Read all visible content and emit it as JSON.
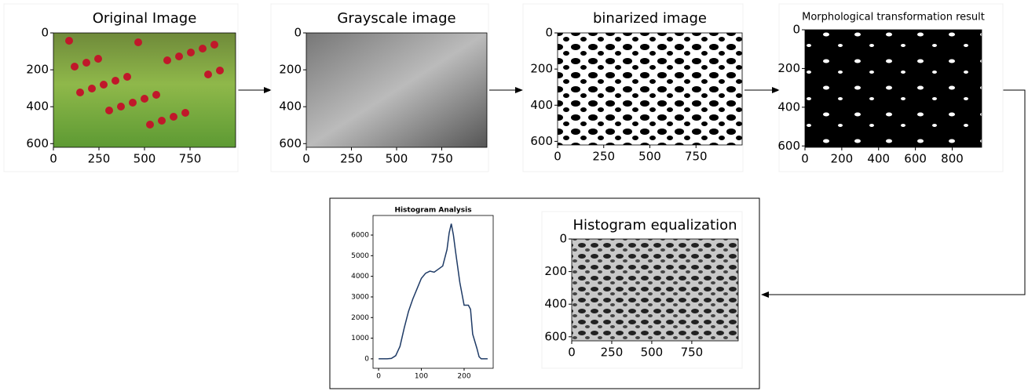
{
  "panels": [
    {
      "title": "Original Image",
      "xlim": [
        0,
        1000
      ],
      "ylim": [
        0,
        620
      ],
      "xticks": [
        0,
        250,
        500,
        750
      ],
      "yticks": [
        0,
        200,
        400,
        600
      ]
    },
    {
      "title": "Grayscale image",
      "xlim": [
        0,
        1000
      ],
      "ylim": [
        0,
        620
      ],
      "xticks": [
        0,
        250,
        500,
        750
      ],
      "yticks": [
        0,
        200,
        400,
        600
      ]
    },
    {
      "title": "binarized image",
      "xlim": [
        0,
        1000
      ],
      "ylim": [
        0,
        620
      ],
      "xticks": [
        0,
        250,
        500,
        750
      ],
      "yticks": [
        0,
        200,
        400,
        600
      ]
    },
    {
      "title": "Morphological transformation result",
      "xlim": [
        0,
        960
      ],
      "ylim": [
        0,
        607
      ],
      "xticks": [
        0,
        200,
        400,
        600,
        800
      ],
      "yticks": [
        0,
        200,
        400,
        600
      ]
    },
    {
      "title": "Histogram equalization",
      "xlim": [
        0,
        1040
      ],
      "ylim": [
        0,
        625
      ],
      "xticks": [
        0,
        250,
        500,
        750
      ],
      "yticks": [
        0,
        200,
        400,
        600
      ]
    }
  ],
  "chart_data": {
    "type": "line",
    "title": "Histogram Analysis",
    "color": "#1f3b66",
    "x": [
      0,
      10,
      20,
      30,
      40,
      50,
      60,
      70,
      80,
      90,
      100,
      110,
      120,
      130,
      140,
      150,
      160,
      165,
      170,
      175,
      180,
      190,
      200,
      210,
      215,
      220,
      230,
      235,
      240,
      250,
      255
    ],
    "values": [
      0,
      0,
      0,
      20,
      150,
      600,
      1500,
      2300,
      2900,
      3400,
      3900,
      4150,
      4250,
      4200,
      4350,
      4500,
      5300,
      6100,
      6550,
      6000,
      5200,
      3700,
      2600,
      2600,
      2400,
      1200,
      500,
      100,
      0,
      0,
      0
    ],
    "xlim": [
      -13,
      268
    ],
    "ylim": [
      -460,
      6950
    ],
    "xticks": [
      0,
      100,
      200
    ],
    "yticks": [
      0,
      1000,
      2000,
      3000,
      4000,
      5000,
      6000
    ]
  }
}
